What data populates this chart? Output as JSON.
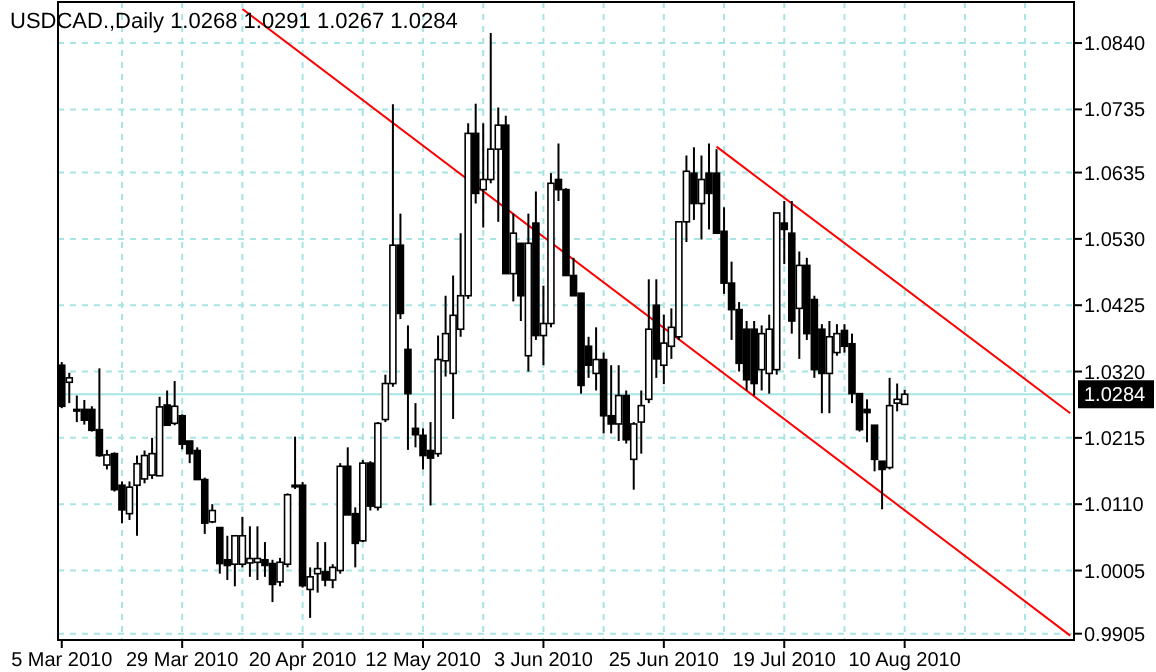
{
  "chart_data": {
    "type": "candlestick",
    "title": "USDCAD.,Daily  1.0268 1.0291 1.0267 1.0284",
    "categories": [
      "5 Mar 2010",
      null,
      null,
      null,
      null,
      null,
      null,
      null,
      null,
      null,
      null,
      null,
      null,
      null,
      null,
      null,
      "29 Mar 2010",
      null,
      null,
      null,
      null,
      null,
      null,
      null,
      null,
      null,
      null,
      null,
      null,
      null,
      null,
      null,
      "20 Apr 2010",
      null,
      null,
      null,
      null,
      null,
      null,
      null,
      null,
      null,
      null,
      null,
      null,
      null,
      null,
      null,
      "12 May 2010",
      null,
      null,
      null,
      null,
      null,
      null,
      null,
      null,
      null,
      null,
      null,
      null,
      null,
      null,
      null,
      "3 Jun 2010",
      null,
      null,
      null,
      null,
      null,
      null,
      null,
      null,
      null,
      null,
      null,
      null,
      null,
      null,
      null,
      "25 Jun 2010",
      null,
      null,
      null,
      null,
      null,
      null,
      null,
      null,
      null,
      null,
      null,
      null,
      null,
      null,
      null,
      "19 Jul 2010",
      null,
      null,
      null,
      null,
      null,
      null,
      null,
      null,
      null,
      null,
      null,
      null,
      null,
      null,
      null,
      "10 Aug 2010",
      null,
      null,
      null,
      null,
      null,
      null,
      null,
      null,
      null,
      null,
      null,
      null,
      null,
      null,
      null,
      null,
      null,
      null,
      null,
      null,
      null,
      null
    ],
    "ohlc": [
      [
        1.033,
        1.0335,
        1.0262,
        1.0265
      ],
      [
        1.0303,
        1.0318,
        1.027,
        1.031
      ],
      [
        1.026,
        1.0282,
        1.024,
        1.0258
      ],
      [
        1.026,
        1.0275,
        1.0236,
        1.0243
      ],
      [
        1.026,
        1.0265,
        1.0225,
        1.0227
      ],
      [
        1.0228,
        1.0325,
        1.0185,
        1.0187
      ],
      [
        1.0172,
        1.0196,
        1.0165,
        1.0188
      ],
      [
        1.019,
        1.0192,
        1.013,
        1.0133
      ],
      [
        1.014,
        1.0146,
        1.008,
        1.0101
      ],
      [
        1.0095,
        1.0146,
        1.0085,
        1.0137
      ],
      [
        1.014,
        1.0187,
        1.006,
        1.0174
      ],
      [
        1.015,
        1.0195,
        1.0143,
        1.0187
      ],
      [
        1.0156,
        1.0215,
        1.015,
        1.019
      ],
      [
        1.0155,
        1.028,
        1.0155,
        1.0264
      ],
      [
        1.0267,
        1.029,
        1.0235,
        1.0235
      ],
      [
        1.0238,
        1.0305,
        1.0235,
        1.0265
      ],
      [
        1.025,
        1.0252,
        1.0197,
        1.0205
      ],
      [
        1.021,
        1.021,
        1.0175,
        1.019
      ],
      [
        1.0195,
        1.02,
        1.0149,
        1.0149
      ],
      [
        1.0149,
        1.0152,
        1.0063,
        1.008
      ],
      [
        1.0082,
        1.011,
        1.008,
        1.01
      ],
      [
        1.0073,
        1.0073,
        1.0,
        1.0016
      ],
      [
        1.0022,
        1.006,
        0.999,
        1.0013
      ],
      [
        1.0015,
        1.006,
        0.998,
        1.006
      ],
      [
        1.0015,
        1.009,
        1.001,
        1.006
      ],
      [
        1.0017,
        1.0075,
        0.9995,
        1.0024
      ],
      [
        1.0018,
        1.0075,
        0.999,
        1.0024
      ],
      [
        1.0022,
        1.005,
        0.9995,
        1.0013
      ],
      [
        1.0016,
        1.0022,
        0.9955,
        0.9983
      ],
      [
        0.9987,
        1.0025,
        0.998,
        1.0018
      ],
      [
        1.0015,
        1.0127,
        1.001,
        1.0125
      ],
      [
        1.014,
        1.0217,
        1.0134,
        1.0138
      ],
      [
        1.014,
        1.0145,
        0.9978,
        0.9981
      ],
      [
        0.9975,
        1.001,
        0.993,
        0.9995
      ],
      [
        1.0,
        1.005,
        0.997,
        1.0008
      ],
      [
        1.0003,
        1.005,
        0.998,
        0.999
      ],
      [
        0.999,
        1.0015,
        0.9977,
        1.001
      ],
      [
        1.0005,
        1.0175,
        1.0,
        1.017
      ],
      [
        1.017,
        1.02,
        1.0093,
        1.0093
      ],
      [
        1.0095,
        1.0105,
        1.001,
        1.0048
      ],
      [
        1.0052,
        1.018,
        1.005,
        1.0175
      ],
      [
        1.0175,
        1.0178,
        1.01,
        1.0107
      ],
      [
        1.0105,
        1.024,
        1.01,
        1.0238
      ],
      [
        1.0244,
        1.0315,
        1.024,
        1.0301
      ],
      [
        1.0301,
        1.0743,
        1.0296,
        1.052
      ],
      [
        1.052,
        1.057,
        1.0403,
        1.0412
      ],
      [
        1.0355,
        1.0393,
        1.0196,
        1.0285
      ],
      [
        1.023,
        1.027,
        1.02,
        1.022
      ],
      [
        1.0219,
        1.023,
        1.0165,
        1.0187
      ],
      [
        1.0195,
        1.024,
        1.0108,
        1.0183
      ],
      [
        1.019,
        1.0377,
        1.0185,
        1.0339
      ],
      [
        1.0337,
        1.044,
        1.0312,
        1.038
      ],
      [
        1.0317,
        1.0472,
        1.0245,
        1.0409
      ],
      [
        1.0387,
        1.0539,
        1.0375,
        1.044
      ],
      [
        1.044,
        1.0713,
        1.0435,
        1.0697
      ],
      [
        1.0697,
        1.0744,
        1.0586,
        1.0602
      ],
      [
        1.0608,
        1.0713,
        1.0548,
        1.0624
      ],
      [
        1.0624,
        1.0856,
        1.0618,
        1.0672
      ],
      [
        1.0672,
        1.0738,
        1.0557,
        1.071
      ],
      [
        1.071,
        1.0725,
        1.0475,
        1.0475
      ],
      [
        1.0475,
        1.057,
        1.0431,
        1.0539
      ],
      [
        1.0523,
        1.0523,
        1.04,
        1.044
      ],
      [
        1.0345,
        1.057,
        1.032,
        1.0523
      ],
      [
        1.0555,
        1.0605,
        1.037,
        1.0377
      ],
      [
        1.0377,
        1.0456,
        1.033,
        1.0396
      ],
      [
        1.0396,
        1.0634,
        1.039,
        1.0618
      ],
      [
        1.0624,
        1.0681,
        1.059,
        1.0608
      ],
      [
        1.0608,
        1.061,
        1.0472,
        1.0472
      ],
      [
        1.0472,
        1.05,
        1.044,
        1.044
      ],
      [
        1.0444,
        1.0444,
        1.0285,
        1.0298
      ],
      [
        1.036,
        1.0375,
        1.031,
        1.033
      ],
      [
        1.0317,
        1.039,
        1.029,
        1.0339
      ],
      [
        1.0339,
        1.035,
        1.0222,
        1.025
      ],
      [
        1.025,
        1.033,
        1.0222,
        1.0237
      ],
      [
        1.0237,
        1.033,
        1.021,
        1.0282
      ],
      [
        1.0282,
        1.029,
        1.0206,
        1.0212
      ],
      [
        1.0181,
        1.024,
        1.0133,
        1.0237
      ],
      [
        1.024,
        1.029,
        1.019,
        1.0266
      ],
      [
        1.0276,
        1.0466,
        1.027,
        1.0387
      ],
      [
        1.0425,
        1.0466,
        1.031,
        1.034
      ],
      [
        1.033,
        1.041,
        1.03,
        1.0365
      ],
      [
        1.036,
        1.042,
        1.034,
        1.039
      ],
      [
        1.0375,
        1.0557,
        1.037,
        1.0557
      ],
      [
        1.0557,
        1.0662,
        1.0525,
        1.0637
      ],
      [
        1.0634,
        1.0675,
        1.056,
        1.0586
      ],
      [
        1.0586,
        1.0662,
        1.0529,
        1.0624
      ],
      [
        1.0634,
        1.0681,
        1.0545,
        1.0602
      ],
      [
        1.0634,
        1.0672,
        1.0539,
        1.0539
      ],
      [
        1.0542,
        1.058,
        1.0443,
        1.046
      ],
      [
        1.046,
        1.0494,
        1.037,
        1.0418
      ],
      [
        1.0418,
        1.043,
        1.032,
        1.0333
      ],
      [
        1.0387,
        1.04,
        1.029,
        1.0307
      ],
      [
        1.0387,
        1.04,
        1.0282,
        1.0301
      ],
      [
        1.0323,
        1.0393,
        1.029,
        1.038
      ],
      [
        1.0317,
        1.041,
        1.0285,
        1.0387
      ],
      [
        1.0323,
        1.0571,
        1.0315,
        1.0571
      ],
      [
        1.0555,
        1.059,
        1.049,
        1.0545
      ],
      [
        1.0539,
        1.059,
        1.038,
        1.04
      ],
      [
        1.042,
        1.051,
        1.034,
        1.0488
      ],
      [
        1.0488,
        1.05,
        1.037,
        1.038
      ],
      [
        1.0434,
        1.044,
        1.031,
        1.0323
      ],
      [
        1.0387,
        1.0395,
        1.0254,
        1.0317
      ],
      [
        1.0317,
        1.04,
        1.0254,
        1.0375
      ],
      [
        1.035,
        1.0395,
        1.0345,
        1.038
      ],
      [
        1.0385,
        1.0395,
        1.035,
        1.036
      ],
      [
        1.0364,
        1.038,
        1.027,
        1.0285
      ],
      [
        1.0285,
        1.0285,
        1.0225,
        1.0228
      ],
      [
        1.026,
        1.0276,
        1.0208,
        1.0255
      ],
      [
        1.0235,
        1.0235,
        1.0162,
        1.0181
      ],
      [
        1.0178,
        1.0178,
        1.0102,
        1.0165
      ],
      [
        1.0168,
        1.031,
        1.0165,
        1.0266
      ],
      [
        1.027,
        1.0301,
        1.0257,
        1.0276
      ],
      [
        1.0268,
        1.0291,
        1.0267,
        1.0284
      ],
      null,
      null,
      null,
      null,
      null,
      null,
      null,
      null,
      null,
      null,
      null,
      null,
      null,
      null,
      null,
      null,
      null,
      null,
      null,
      null,
      null,
      null
    ],
    "series": [
      {
        "type": "line",
        "color": "#ff0000",
        "values": [
          null,
          null,
          null,
          null,
          null,
          null,
          null,
          null,
          null,
          null,
          null,
          null,
          null,
          null,
          null,
          null,
          null,
          null,
          null,
          null,
          null,
          null,
          null,
          null,
          1.0894,
          null,
          null,
          null,
          null,
          null,
          null,
          null,
          null,
          null,
          null,
          null,
          null,
          null,
          null,
          null,
          null,
          null,
          null,
          null,
          null,
          null,
          null,
          null,
          null,
          null,
          null,
          null,
          null,
          null,
          null,
          null,
          null,
          null,
          null,
          null,
          null,
          null,
          null,
          null,
          null,
          null,
          null,
          null,
          null,
          null,
          null,
          null,
          null,
          null,
          null,
          null,
          null,
          null,
          null,
          null,
          null,
          null,
          null,
          null,
          null,
          null,
          null,
          null,
          null,
          null,
          null,
          null,
          null,
          null,
          null,
          null,
          null,
          null,
          null,
          null,
          null,
          null,
          null,
          null,
          null,
          null,
          null,
          null,
          null,
          null,
          null,
          null,
          null,
          null,
          null,
          null,
          null,
          null,
          null,
          null,
          null,
          null,
          null,
          null,
          null,
          null,
          null,
          null,
          null,
          null,
          null,
          null,
          null,
          null,
          0.9902
        ]
      },
      {
        "type": "line",
        "color": "#ff0000",
        "values": [
          null,
          null,
          null,
          null,
          null,
          null,
          null,
          null,
          null,
          null,
          null,
          null,
          null,
          null,
          null,
          null,
          null,
          null,
          null,
          null,
          null,
          null,
          null,
          null,
          null,
          null,
          null,
          null,
          null,
          null,
          null,
          null,
          null,
          null,
          null,
          null,
          null,
          null,
          null,
          null,
          null,
          null,
          null,
          null,
          null,
          null,
          null,
          null,
          null,
          null,
          null,
          null,
          null,
          null,
          null,
          null,
          null,
          null,
          null,
          null,
          null,
          null,
          null,
          null,
          null,
          null,
          null,
          null,
          null,
          null,
          null,
          null,
          null,
          null,
          null,
          null,
          null,
          null,
          null,
          null,
          null,
          null,
          null,
          null,
          null,
          null,
          null,
          1.0676,
          null,
          null,
          null,
          null,
          null,
          null,
          null,
          null,
          null,
          null,
          null,
          null,
          null,
          null,
          null,
          null,
          null,
          null,
          null,
          null,
          null,
          null,
          null,
          null,
          null,
          null,
          null,
          null,
          null,
          null,
          null,
          null,
          null,
          null,
          null,
          null,
          null,
          null,
          null,
          null,
          null,
          null,
          null,
          null,
          null,
          null,
          1.0254
        ]
      }
    ],
    "ylim": [
      0.9895,
      1.0905
    ],
    "yticks": [
      {
        "value": 1.084,
        "label": "1.0840"
      },
      1.0735,
      1.0635,
      {
        "value": 1.053,
        "label": "1.0530"
      },
      1.0425,
      {
        "value": 1.032,
        "label": "1.0320"
      },
      1.0215,
      {
        "value": 1.011,
        "label": "1.0110"
      },
      1.0005,
      0.9905
    ],
    "ref_lines": [
      {
        "axis": "y",
        "value": 1.0284,
        "label": "1.0284",
        "color": "#a8e4e4"
      }
    ],
    "grid": true
  }
}
